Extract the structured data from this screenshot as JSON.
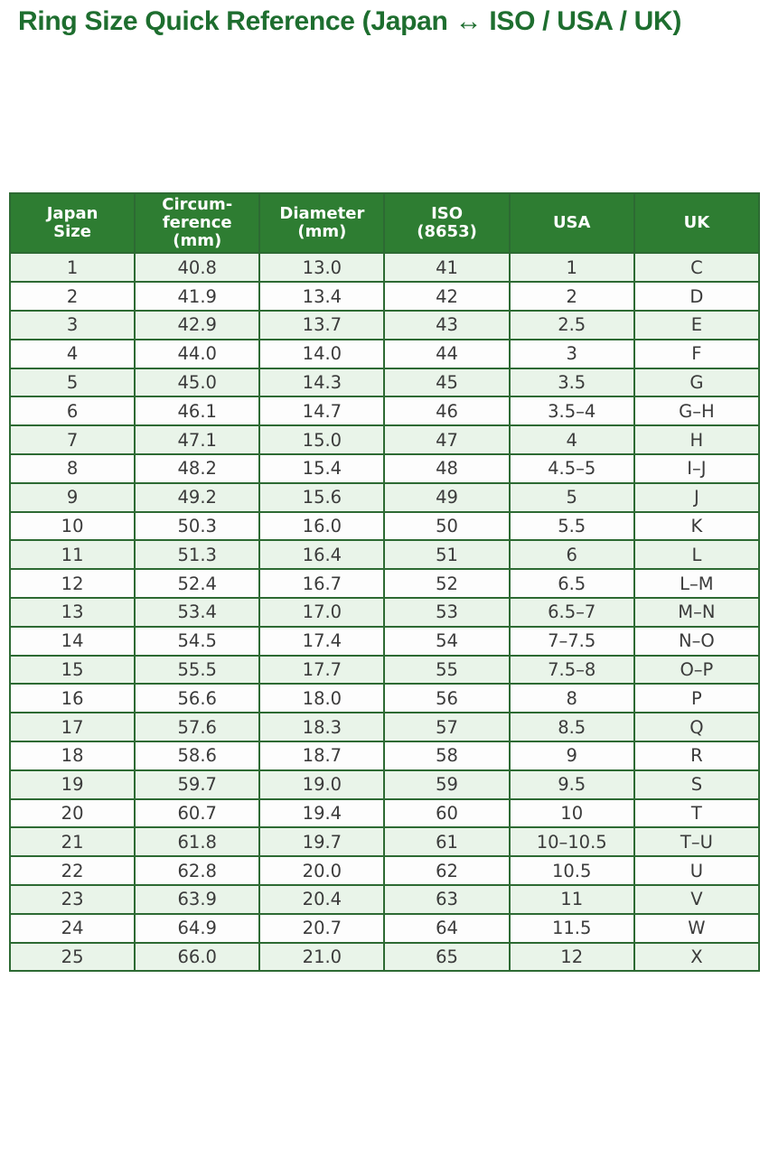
{
  "title": "Ring Size Quick Reference (Japan ↔ ISO / USA / UK)",
  "colors": {
    "header_bg": "#2e7d32",
    "header_text": "#ffffff",
    "row_stripe": "#e9f4e9",
    "row_plain": "#fdfdfd",
    "border": "#2d6a33",
    "title_text": "#1e6e2f",
    "body_text": "#3b3b3b"
  },
  "table": {
    "columns_display": [
      "Japan\nSize",
      "Circum-\nference\n(mm)",
      "Diameter\n(mm)",
      "ISO\n(8653)",
      "USA",
      "UK"
    ]
  },
  "chart_data": {
    "type": "table",
    "title": "Ring Size Quick Reference (Japan ↔ ISO / USA / UK)",
    "columns": [
      "Japan Size",
      "Circumference (mm)",
      "Diameter (mm)",
      "ISO (8653)",
      "USA",
      "UK"
    ],
    "rows": [
      [
        "1",
        "40.8",
        "13.0",
        "41",
        "1",
        "C"
      ],
      [
        "2",
        "41.9",
        "13.4",
        "42",
        "2",
        "D"
      ],
      [
        "3",
        "42.9",
        "13.7",
        "43",
        "2.5",
        "E"
      ],
      [
        "4",
        "44.0",
        "14.0",
        "44",
        "3",
        "F"
      ],
      [
        "5",
        "45.0",
        "14.3",
        "45",
        "3.5",
        "G"
      ],
      [
        "6",
        "46.1",
        "14.7",
        "46",
        "3.5–4",
        "G–H"
      ],
      [
        "7",
        "47.1",
        "15.0",
        "47",
        "4",
        "H"
      ],
      [
        "8",
        "48.2",
        "15.4",
        "48",
        "4.5–5",
        "I–J"
      ],
      [
        "9",
        "49.2",
        "15.6",
        "49",
        "5",
        "J"
      ],
      [
        "10",
        "50.3",
        "16.0",
        "50",
        "5.5",
        "K"
      ],
      [
        "11",
        "51.3",
        "16.4",
        "51",
        "6",
        "L"
      ],
      [
        "12",
        "52.4",
        "16.7",
        "52",
        "6.5",
        "L–M"
      ],
      [
        "13",
        "53.4",
        "17.0",
        "53",
        "6.5–7",
        "M–N"
      ],
      [
        "14",
        "54.5",
        "17.4",
        "54",
        "7–7.5",
        "N–O"
      ],
      [
        "15",
        "55.5",
        "17.7",
        "55",
        "7.5–8",
        "O–P"
      ],
      [
        "16",
        "56.6",
        "18.0",
        "56",
        "8",
        "P"
      ],
      [
        "17",
        "57.6",
        "18.3",
        "57",
        "8.5",
        "Q"
      ],
      [
        "18",
        "58.6",
        "18.7",
        "58",
        "9",
        "R"
      ],
      [
        "19",
        "59.7",
        "19.0",
        "59",
        "9.5",
        "S"
      ],
      [
        "20",
        "60.7",
        "19.4",
        "60",
        "10",
        "T"
      ],
      [
        "21",
        "61.8",
        "19.7",
        "61",
        "10–10.5",
        "T–U"
      ],
      [
        "22",
        "62.8",
        "20.0",
        "62",
        "10.5",
        "U"
      ],
      [
        "23",
        "63.9",
        "20.4",
        "63",
        "11",
        "V"
      ],
      [
        "24",
        "64.9",
        "20.7",
        "64",
        "11.5",
        "W"
      ],
      [
        "25",
        "66.0",
        "21.0",
        "65",
        "12",
        "X"
      ]
    ]
  }
}
